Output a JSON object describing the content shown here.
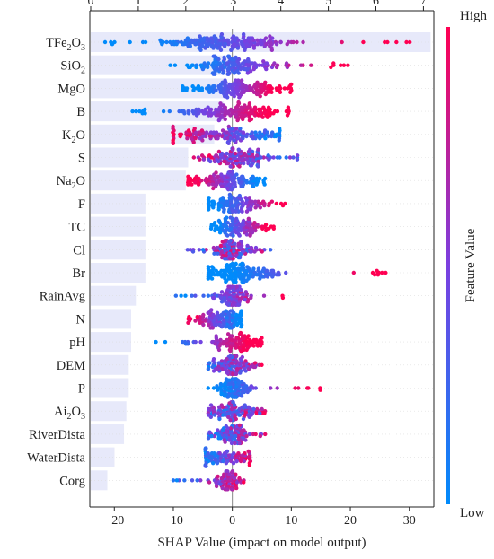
{
  "chart_data": {
    "type": "scatter",
    "subtype": "shap-beeswarm-with-mean-importance-bars",
    "xlabel": "SHAP Value (impact on model output)",
    "x_ticks": [
      -20,
      -10,
      0,
      10,
      20,
      30
    ],
    "xlim": [
      -24,
      34
    ],
    "top_x_ticks": [
      0,
      1,
      2,
      3,
      4,
      5,
      6,
      7
    ],
    "top_xlim": [
      0,
      7.2
    ],
    "colorbar": {
      "title": "Feature Value",
      "high_label": "High",
      "low_label": "Low",
      "high_color": "#ff0052",
      "low_color": "#008bfb"
    },
    "grid": false,
    "features": [
      {
        "label": "TFe",
        "sub": "2",
        "label_after": "O",
        "sub2": "3",
        "mean_importance": 7.15,
        "min": -21.5,
        "max": 30.0,
        "q1": -6.0,
        "q3": 3.5,
        "corr": 0.85,
        "density": 1.0
      },
      {
        "label": "SiO",
        "sub": "2",
        "mean_importance": 3.05,
        "min": -10.5,
        "max": 19.5,
        "q1": -3.0,
        "q3": 3.0,
        "corr": 0.8,
        "density": 0.8
      },
      {
        "label": "MgO",
        "mean_importance": 2.85,
        "min": -8.5,
        "max": 10.0,
        "q1": -3.0,
        "q3": 5.0,
        "corr": 0.95,
        "density": 0.8
      },
      {
        "label": "B",
        "mean_importance": 2.8,
        "min": -17.0,
        "max": 9.5,
        "q1": -3.0,
        "q3": 4.0,
        "corr": 0.9,
        "density": 0.85
      },
      {
        "label": "K",
        "sub": "2",
        "label_after": "O",
        "mean_importance": 2.6,
        "min": -10.0,
        "max": 8.0,
        "q1": -5.0,
        "q3": 4.0,
        "corr": -0.6,
        "density": 0.8
      },
      {
        "label": "S",
        "mean_importance": 2.05,
        "min": -6.5,
        "max": 11.0,
        "q1": -2.0,
        "q3": 3.0,
        "corr": -0.3,
        "density": 0.7
      },
      {
        "label": "Na",
        "sub": "2",
        "label_after": "O",
        "mean_importance": 2.0,
        "min": -7.5,
        "max": 5.5,
        "q1": -4.0,
        "q3": 1.5,
        "corr": -0.8,
        "density": 0.7
      },
      {
        "label": "F",
        "mean_importance": 1.15,
        "min": -4.0,
        "max": 9.0,
        "q1": -1.5,
        "q3": 2.5,
        "corr": 0.8,
        "density": 0.6
      },
      {
        "label": "TC",
        "mean_importance": 1.15,
        "min": -3.5,
        "max": 7.0,
        "q1": -1.5,
        "q3": 2.5,
        "corr": 0.8,
        "density": 0.6
      },
      {
        "label": "Cl",
        "mean_importance": 1.15,
        "min": -7.5,
        "max": 6.5,
        "q1": -2.0,
        "q3": 1.5,
        "corr": 0.1,
        "density": 0.6
      },
      {
        "label": "Br",
        "mean_importance": 1.15,
        "min": -4.0,
        "max": 26.0,
        "q1": -1.5,
        "q3": 4.0,
        "corr": 0.9,
        "density": 0.8
      },
      {
        "label": "RainAvg",
        "mean_importance": 0.95,
        "min": -9.5,
        "max": 8.5,
        "q1": -1.0,
        "q3": 1.5,
        "corr": 0.6,
        "density": 0.55
      },
      {
        "label": "N",
        "mean_importance": 0.85,
        "min": -7.5,
        "max": 1.5,
        "q1": -3.5,
        "q3": 0.8,
        "corr": -0.7,
        "density": 0.6
      },
      {
        "label": "pH",
        "mean_importance": 0.85,
        "min": -13.0,
        "max": 5.0,
        "q1": -1.0,
        "q3": 3.0,
        "corr": 0.85,
        "density": 0.55
      },
      {
        "label": "DEM",
        "mean_importance": 0.8,
        "min": -4.0,
        "max": 5.0,
        "q1": -2.0,
        "q3": 1.5,
        "corr": 0.3,
        "density": 0.55
      },
      {
        "label": "P",
        "mean_importance": 0.8,
        "min": -4.0,
        "max": 15.0,
        "q1": -1.0,
        "q3": 1.5,
        "corr": 0.75,
        "density": 0.55
      },
      {
        "label": "Ai",
        "sub": "2",
        "label_after": "O",
        "sub2": "3",
        "mean_importance": 0.75,
        "min": -4.0,
        "max": 5.5,
        "q1": -2.0,
        "q3": 2.0,
        "corr": 0.2,
        "density": 0.55
      },
      {
        "label": "RiverDista",
        "mean_importance": 0.7,
        "min": -4.0,
        "max": 5.5,
        "q1": -1.5,
        "q3": 1.5,
        "corr": 0.3,
        "density": 0.5
      },
      {
        "label": "WaterDista",
        "mean_importance": 0.5,
        "min": -4.5,
        "max": 3.0,
        "q1": -4.0,
        "q3": 0.8,
        "corr": 0.5,
        "density": 0.45
      },
      {
        "label": "Corg",
        "mean_importance": 0.35,
        "min": -10.0,
        "max": 2.0,
        "q1": -1.5,
        "q3": 0.5,
        "corr": 0.4,
        "density": 0.4
      }
    ]
  }
}
